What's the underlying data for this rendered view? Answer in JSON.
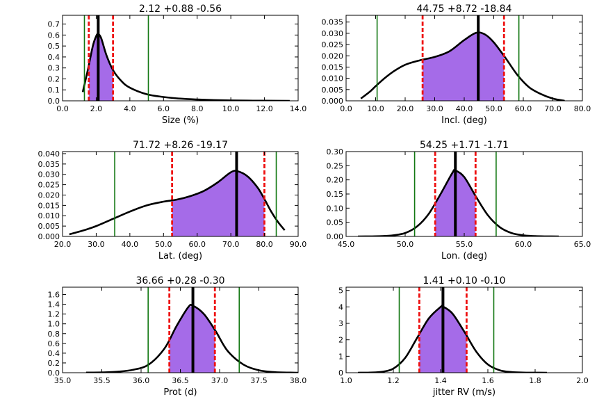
{
  "colors": {
    "curve": "#000000",
    "fill": "#a56be8",
    "median": "#000000",
    "credible": "#ee1111",
    "outer": "#117711"
  },
  "chart_data": [
    {
      "type": "line",
      "title": "2.12 +0.88 -0.56",
      "xlabel": "Size (%)",
      "xlim": [
        0,
        14
      ],
      "ylim": [
        0,
        0.78
      ],
      "xticks": [
        0,
        2,
        4,
        6,
        8,
        10,
        12,
        14
      ],
      "xtick_labels": [
        "0.0",
        "2.0",
        "4.0",
        "6.0",
        "8.0",
        "10.0",
        "12.0",
        "14.0"
      ],
      "yticks": [
        0,
        0.1,
        0.2,
        0.3,
        0.4,
        0.5,
        0.6,
        0.7
      ],
      "ytick_labels": [
        "0.0",
        "0.1",
        "0.2",
        "0.3",
        "0.4",
        "0.5",
        "0.6",
        "0.7"
      ],
      "curve": {
        "x": [
          1.2,
          1.5,
          1.8,
          2.0,
          2.12,
          2.3,
          2.6,
          3.0,
          3.5,
          4.0,
          5.0,
          6.0,
          7.0,
          8.0,
          9.0,
          10.0,
          11.0,
          12.0,
          13.5
        ],
        "y": [
          0.08,
          0.28,
          0.5,
          0.59,
          0.61,
          0.57,
          0.42,
          0.28,
          0.18,
          0.12,
          0.06,
          0.035,
          0.02,
          0.012,
          0.007,
          0.004,
          0.002,
          0.001,
          0.0
        ]
      },
      "median": 2.12,
      "lower": 1.56,
      "upper": 3.0,
      "outer": [
        1.3,
        5.1
      ]
    },
    {
      "type": "line",
      "title": "44.75 +8.72 -18.84",
      "xlabel": "Incl. (deg)",
      "xlim": [
        0,
        80
      ],
      "ylim": [
        0,
        0.038
      ],
      "xticks": [
        0,
        10,
        20,
        30,
        40,
        50,
        60,
        70,
        80
      ],
      "xtick_labels": [
        "0.0",
        "10.0",
        "20.0",
        "30.0",
        "40.0",
        "50.0",
        "60.0",
        "70.0",
        "80.0"
      ],
      "yticks": [
        0,
        0.005,
        0.01,
        0.015,
        0.02,
        0.025,
        0.03,
        0.035
      ],
      "ytick_labels": [
        "0.000",
        "0.005",
        "0.010",
        "0.015",
        "0.020",
        "0.025",
        "0.030",
        "0.035"
      ],
      "curve": {
        "x": [
          5,
          8,
          10,
          13,
          16,
          20,
          25,
          30,
          35,
          40,
          44,
          47,
          50,
          54,
          58,
          62,
          66,
          70,
          74
        ],
        "y": [
          0.001,
          0.004,
          0.0065,
          0.01,
          0.013,
          0.016,
          0.018,
          0.0195,
          0.022,
          0.027,
          0.0302,
          0.0295,
          0.026,
          0.019,
          0.0115,
          0.006,
          0.003,
          0.001,
          0.0
        ]
      },
      "median": 44.75,
      "lower": 25.91,
      "upper": 53.47,
      "outer": [
        10.5,
        58.5
      ]
    },
    {
      "type": "line",
      "title": "71.72 +8.26 -19.17",
      "xlabel": "Lat. (deg)",
      "xlim": [
        20,
        90
      ],
      "ylim": [
        0,
        0.041
      ],
      "xticks": [
        20,
        30,
        40,
        50,
        60,
        70,
        80,
        90
      ],
      "xtick_labels": [
        "20.0",
        "30.0",
        "40.0",
        "50.0",
        "60.0",
        "70.0",
        "80.0",
        "90.0"
      ],
      "yticks": [
        0,
        0.005,
        0.01,
        0.015,
        0.02,
        0.025,
        0.03,
        0.035,
        0.04
      ],
      "ytick_labels": [
        "0.000",
        "0.005",
        "0.010",
        "0.015",
        "0.020",
        "0.025",
        "0.030",
        "0.035",
        "0.040"
      ],
      "curve": {
        "x": [
          22,
          26,
          30,
          35,
          40,
          45,
          50,
          54,
          58,
          62,
          66,
          70,
          72,
          75,
          78,
          80,
          82,
          84,
          86
        ],
        "y": [
          0.001,
          0.0028,
          0.005,
          0.0085,
          0.012,
          0.015,
          0.0168,
          0.0178,
          0.0195,
          0.022,
          0.026,
          0.031,
          0.0315,
          0.029,
          0.0235,
          0.018,
          0.012,
          0.007,
          0.003
        ]
      },
      "median": 71.72,
      "lower": 52.55,
      "upper": 79.98,
      "outer": [
        35.5,
        83.5
      ]
    },
    {
      "type": "line",
      "title": "54.25 +1.71 -1.71",
      "xlabel": "Lon. (deg)",
      "xlim": [
        45,
        65
      ],
      "ylim": [
        0,
        0.3
      ],
      "xticks": [
        45,
        50,
        55,
        60,
        65
      ],
      "xtick_labels": [
        "45.0",
        "50.0",
        "55.0",
        "60.0",
        "65.0"
      ],
      "yticks": [
        0,
        0.05,
        0.1,
        0.15,
        0.2,
        0.25,
        0.3
      ],
      "ytick_labels": [
        "0.00",
        "0.05",
        "0.10",
        "0.15",
        "0.20",
        "0.25",
        "0.30"
      ],
      "curve": {
        "x": [
          46,
          47,
          48,
          49,
          50,
          51,
          52,
          53,
          54,
          54.25,
          55,
          56,
          57,
          58,
          59,
          60,
          61,
          62,
          63
        ],
        "y": [
          0,
          0.0002,
          0.001,
          0.004,
          0.012,
          0.035,
          0.08,
          0.15,
          0.225,
          0.233,
          0.21,
          0.14,
          0.075,
          0.033,
          0.012,
          0.004,
          0.001,
          0.0002,
          0
        ]
      },
      "median": 54.25,
      "lower": 52.54,
      "upper": 55.96,
      "outer": [
        50.8,
        57.7
      ]
    },
    {
      "type": "line",
      "title": "36.66 +0.28 -0.30",
      "xlabel": "Prot (d)",
      "xlim": [
        35,
        38
      ],
      "ylim": [
        0,
        1.75
      ],
      "xticks": [
        35,
        35.5,
        36,
        36.5,
        37,
        37.5,
        38
      ],
      "xtick_labels": [
        "35.0",
        "35.5",
        "36.0",
        "36.5",
        "37.0",
        "37.5",
        "38.0"
      ],
      "yticks": [
        0,
        0.2,
        0.4,
        0.6,
        0.8,
        1.0,
        1.2,
        1.4,
        1.6
      ],
      "ytick_labels": [
        "0.0",
        "0.2",
        "0.4",
        "0.6",
        "0.8",
        "1.0",
        "1.2",
        "1.4",
        "1.6"
      ],
      "curve": {
        "x": [
          35.3,
          35.5,
          35.7,
          35.9,
          36.1,
          36.3,
          36.45,
          36.6,
          36.66,
          36.8,
          36.95,
          37.1,
          37.3,
          37.5,
          37.7,
          37.9,
          38.0
        ],
        "y": [
          0.002,
          0.006,
          0.02,
          0.06,
          0.17,
          0.5,
          0.95,
          1.34,
          1.37,
          1.2,
          0.85,
          0.45,
          0.17,
          0.05,
          0.012,
          0.002,
          0
        ]
      },
      "median": 36.66,
      "lower": 36.36,
      "upper": 36.94,
      "outer": [
        36.09,
        37.25
      ]
    },
    {
      "type": "line",
      "title": "1.41 +0.10 -0.10",
      "xlabel": "jitter RV (m/s)",
      "xlim": [
        1,
        2
      ],
      "ylim": [
        0,
        5.2
      ],
      "xticks": [
        1.0,
        1.2,
        1.4,
        1.6,
        1.8,
        2.0
      ],
      "xtick_labels": [
        "1.0",
        "1.2",
        "1.4",
        "1.6",
        "1.8",
        "2.0"
      ],
      "yticks": [
        0,
        1,
        2,
        3,
        4,
        5
      ],
      "ytick_labels": [
        "0",
        "1",
        "2",
        "3",
        "4",
        "5"
      ],
      "curve": {
        "x": [
          1.05,
          1.1,
          1.15,
          1.2,
          1.25,
          1.3,
          1.35,
          1.4,
          1.41,
          1.45,
          1.5,
          1.55,
          1.6,
          1.65,
          1.7,
          1.75,
          1.8,
          1.85
        ],
        "y": [
          0,
          0.01,
          0.05,
          0.25,
          0.9,
          2.1,
          3.3,
          4.0,
          4.02,
          3.6,
          2.5,
          1.3,
          0.5,
          0.15,
          0.04,
          0.01,
          0.002,
          0
        ]
      },
      "median": 1.41,
      "lower": 1.31,
      "upper": 1.51,
      "outer": [
        1.225,
        1.625
      ]
    }
  ]
}
